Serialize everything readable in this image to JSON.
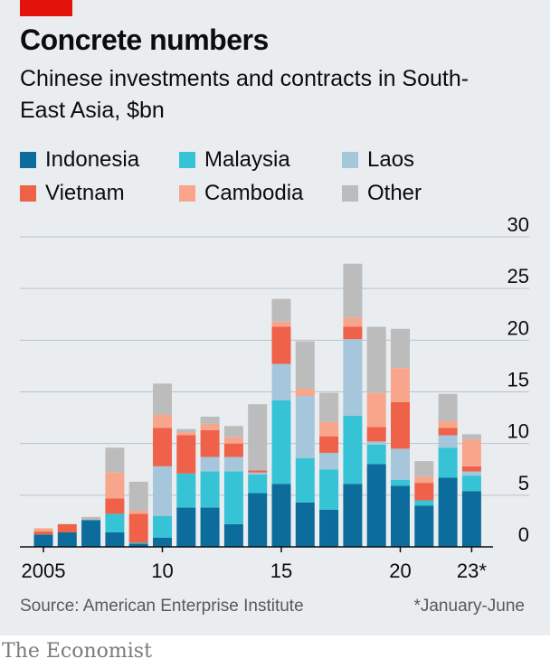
{
  "title": "Concrete numbers",
  "subtitle": "Chinese investments and contracts in South-East Asia, $bn",
  "source": "Source: American Enterprise Institute",
  "footnote": "*January-June",
  "brand": "The Economist",
  "colors": {
    "Indonesia": "#0c6c9c",
    "Malaysia": "#36c3d6",
    "Laos": "#a6c6db",
    "Vietnam": "#f0614a",
    "Cambodia": "#f7a68c",
    "Other": "#bcbcbc",
    "gridline": "#b7c2ca",
    "accent": "#e3120b"
  },
  "legend": [
    {
      "label": "Indonesia",
      "color": "#0c6c9c"
    },
    {
      "label": "Malaysia",
      "color": "#36c3d6"
    },
    {
      "label": "Laos",
      "color": "#a6c6db"
    },
    {
      "label": "Vietnam",
      "color": "#f0614a"
    },
    {
      "label": "Cambodia",
      "color": "#f7a68c"
    },
    {
      "label": "Other",
      "color": "#bcbcbc"
    }
  ],
  "chart_data": {
    "type": "bar",
    "stacked": true,
    "x": [
      2005,
      2006,
      2007,
      2008,
      2009,
      2010,
      2011,
      2012,
      2013,
      2014,
      2015,
      2016,
      2017,
      2018,
      2019,
      2020,
      2021,
      2022,
      2023
    ],
    "x_tick_labels": [
      {
        "x": 2005,
        "label": "2005"
      },
      {
        "x": 2010,
        "label": "10"
      },
      {
        "x": 2015,
        "label": "15"
      },
      {
        "x": 2020,
        "label": "20"
      },
      {
        "x": 2023,
        "label": "23*"
      }
    ],
    "ylim": [
      0,
      30
    ],
    "yticks": [
      0,
      5,
      10,
      15,
      20,
      25,
      30
    ],
    "y_axis_side": "right",
    "grid": true,
    "legend_position": "top",
    "series": [
      {
        "name": "Indonesia",
        "values": [
          1.2,
          1.4,
          2.6,
          1.4,
          0.3,
          0.9,
          3.8,
          3.8,
          2.2,
          5.2,
          6.1,
          4.3,
          3.6,
          6.1,
          8.0,
          5.9,
          4.0,
          6.7,
          5.4
        ]
      },
      {
        "name": "Malaysia",
        "values": [
          0,
          0,
          0,
          1.8,
          0.1,
          2.1,
          3.3,
          3.5,
          5.1,
          1.8,
          8.1,
          4.3,
          3.9,
          6.6,
          1.9,
          0.6,
          0.5,
          2.9,
          1.5
        ]
      },
      {
        "name": "Laos",
        "values": [
          0,
          0,
          0,
          0,
          0,
          4.8,
          0,
          1.4,
          1.4,
          0.2,
          3.5,
          6.0,
          1.6,
          7.4,
          0.3,
          3.0,
          0,
          1.2,
          0.4
        ]
      },
      {
        "name": "Vietnam",
        "values": [
          0.3,
          0.8,
          0,
          1.5,
          2.8,
          3.7,
          3.7,
          2.6,
          1.3,
          0.2,
          3.6,
          0,
          1.6,
          1.2,
          1.4,
          4.5,
          1.7,
          0.7,
          0.5
        ]
      },
      {
        "name": "Cambodia",
        "values": [
          0.3,
          0,
          0,
          2.5,
          0.3,
          1.3,
          0.3,
          0.6,
          0.6,
          0,
          0.5,
          0.7,
          1.4,
          0.9,
          3.3,
          3.3,
          0.6,
          0.7,
          2.6
        ]
      },
      {
        "name": "Other",
        "values": [
          0,
          0,
          0.3,
          2.4,
          2.8,
          3.0,
          0.3,
          0.7,
          1.1,
          6.4,
          2.2,
          4.6,
          2.8,
          5.2,
          6.4,
          3.8,
          1.5,
          2.6,
          0.5
        ]
      }
    ]
  }
}
